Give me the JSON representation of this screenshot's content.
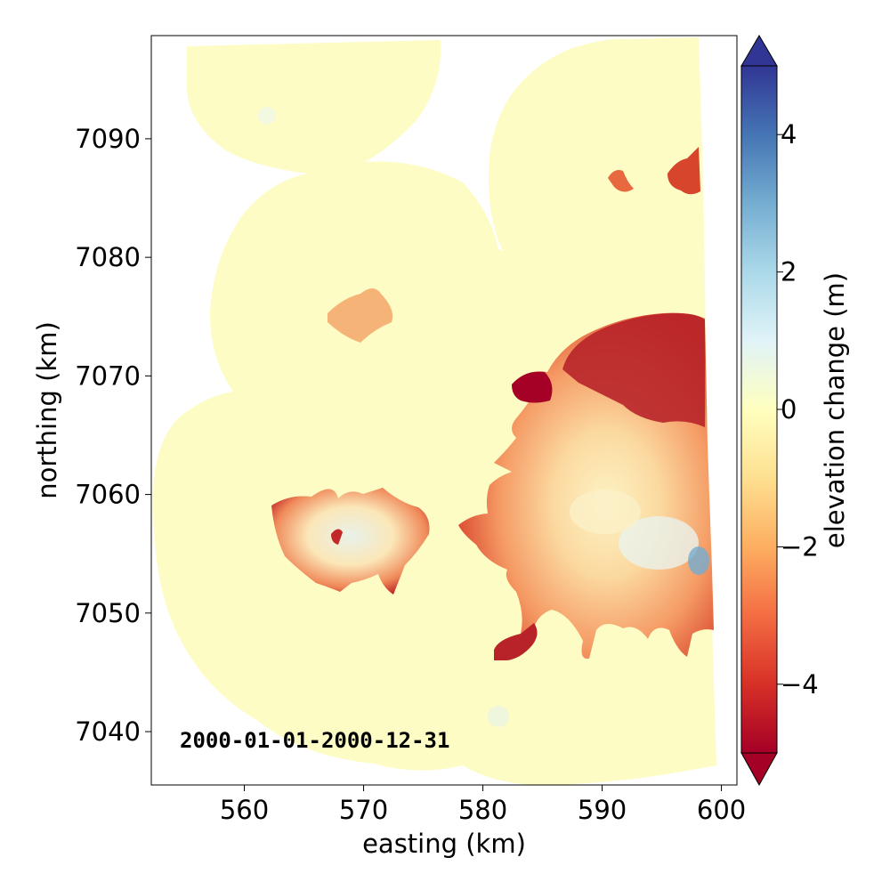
{
  "chart_data": {
    "type": "heatmap",
    "title": "",
    "xlabel": "easting (km)",
    "ylabel": "northing (km)",
    "xlim": [
      552.2,
      601.3
    ],
    "ylim": [
      7035.5,
      7098.7
    ],
    "x_ticks": [
      560,
      570,
      580,
      590,
      600
    ],
    "y_ticks": [
      7040,
      7050,
      7060,
      7070,
      7080,
      7090
    ],
    "annotation": "2000-01-01-2000-12-31",
    "colorbar": {
      "label": "elevation change (m)",
      "range": [
        -5,
        5
      ],
      "ticks": [
        4,
        2,
        0,
        -2,
        -4
      ],
      "tick_labels": [
        "4",
        "2",
        "0",
        "−2",
        "−4"
      ],
      "colormap": "RdYlBu",
      "extend": "both"
    },
    "colors": {
      "background_change": "#fdfcc4",
      "moderate_loss": "#fdae61",
      "strong_loss": "#d73027",
      "max_loss": "#a50026",
      "gain": "#abd9e9",
      "max_gain": "#313695"
    }
  }
}
